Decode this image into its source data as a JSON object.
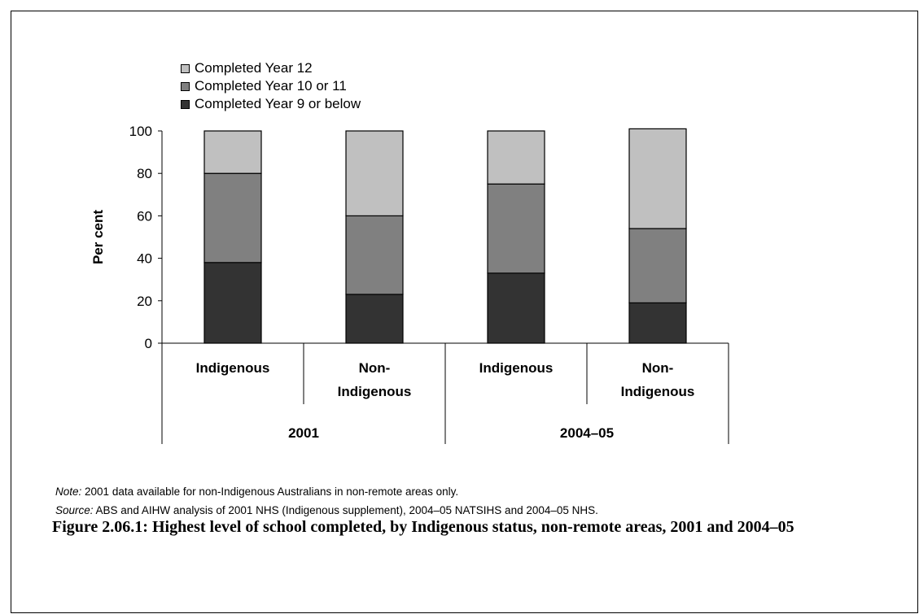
{
  "chart_data": {
    "type": "bar",
    "stacked": true,
    "categories": [
      "Indigenous",
      "Non-Indigenous",
      "Indigenous",
      "Non-Indigenous"
    ],
    "groups": [
      {
        "label": "2001",
        "categories": [
          "Indigenous",
          "Non-Indigenous"
        ]
      },
      {
        "label": "2004–05",
        "categories": [
          "Indigenous",
          "Non-Indigenous"
        ]
      }
    ],
    "series": [
      {
        "name": "Completed Year 9 or below",
        "color": "#333333",
        "values": [
          38,
          23,
          33,
          19
        ]
      },
      {
        "name": "Completed Year 10 or 11",
        "color": "#808080",
        "values": [
          42,
          37,
          42,
          35
        ]
      },
      {
        "name": "Completed Year 12",
        "color": "#c0c0c0",
        "values": [
          20,
          40,
          25,
          47
        ]
      }
    ],
    "legend_order": [
      "Completed Year 12",
      "Completed Year 10 or 11",
      "Completed Year 9 or below"
    ],
    "ylabel": "Per cent",
    "ylim": [
      0,
      100
    ],
    "yticks": [
      0,
      20,
      40,
      60,
      80,
      100
    ],
    "grid": false,
    "legend_position": "top-left"
  },
  "notes": {
    "note_label": "Note:",
    "note_text": " 2001 data available for non-Indigenous Australians in non-remote areas only.",
    "source_label": "Source:",
    "source_text": " ABS and AIHW analysis of 2001 NHS (Indigenous supplement), 2004–05 NATSIHS and 2004–05 NHS."
  },
  "caption": "Figure 2.06.1: Highest level of school completed, by Indigenous status, non-remote areas, 2001 and 2004–05"
}
